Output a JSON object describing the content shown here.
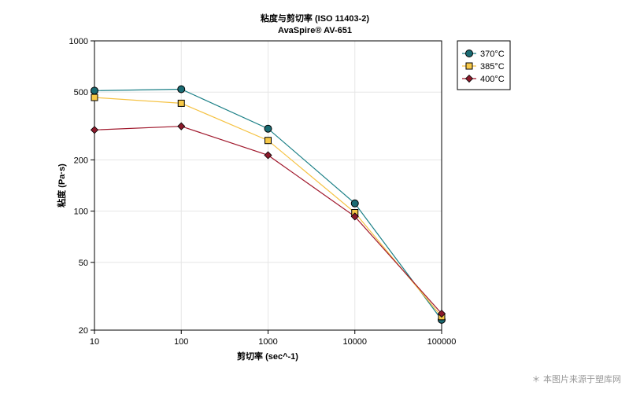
{
  "chart_data": {
    "type": "line",
    "title": "粘度与剪切率 (ISO 11403-2)",
    "subtitle": "AvaSpire® AV-651",
    "xlabel": "剪切率 (sec^-1)",
    "ylabel": "粘度 (Pa·s)",
    "x_scale": "log",
    "y_scale": "log",
    "xlim": [
      10,
      100000
    ],
    "ylim": [
      20,
      1000
    ],
    "x_ticks": [
      10,
      100,
      1000,
      10000,
      100000
    ],
    "x_tick_labels": [
      "10",
      "100",
      "1000",
      "10000",
      "100000"
    ],
    "y_ticks": [
      20,
      50,
      100,
      200,
      500,
      1000
    ],
    "y_tick_labels": [
      "20",
      "50",
      "100",
      "200",
      "500",
      "1000"
    ],
    "grid": true,
    "legend_position": "top-right-outside",
    "x": [
      10,
      100,
      1000,
      10000,
      100000
    ],
    "series": [
      {
        "name": "370°C",
        "marker": "circle",
        "color": "#1a7f86",
        "fill": "#1a6b73",
        "values": [
          510,
          520,
          305,
          111,
          23
        ]
      },
      {
        "name": "385°C",
        "marker": "square",
        "color": "#f5c242",
        "fill": "#f7c948",
        "values": [
          465,
          430,
          260,
          98,
          24
        ]
      },
      {
        "name": "400°C",
        "marker": "diamond",
        "color": "#a0182c",
        "fill": "#8b1a2b",
        "values": [
          300,
          315,
          213,
          93,
          25
        ]
      }
    ]
  },
  "watermark": "＊ 本图片来源于塑库网"
}
